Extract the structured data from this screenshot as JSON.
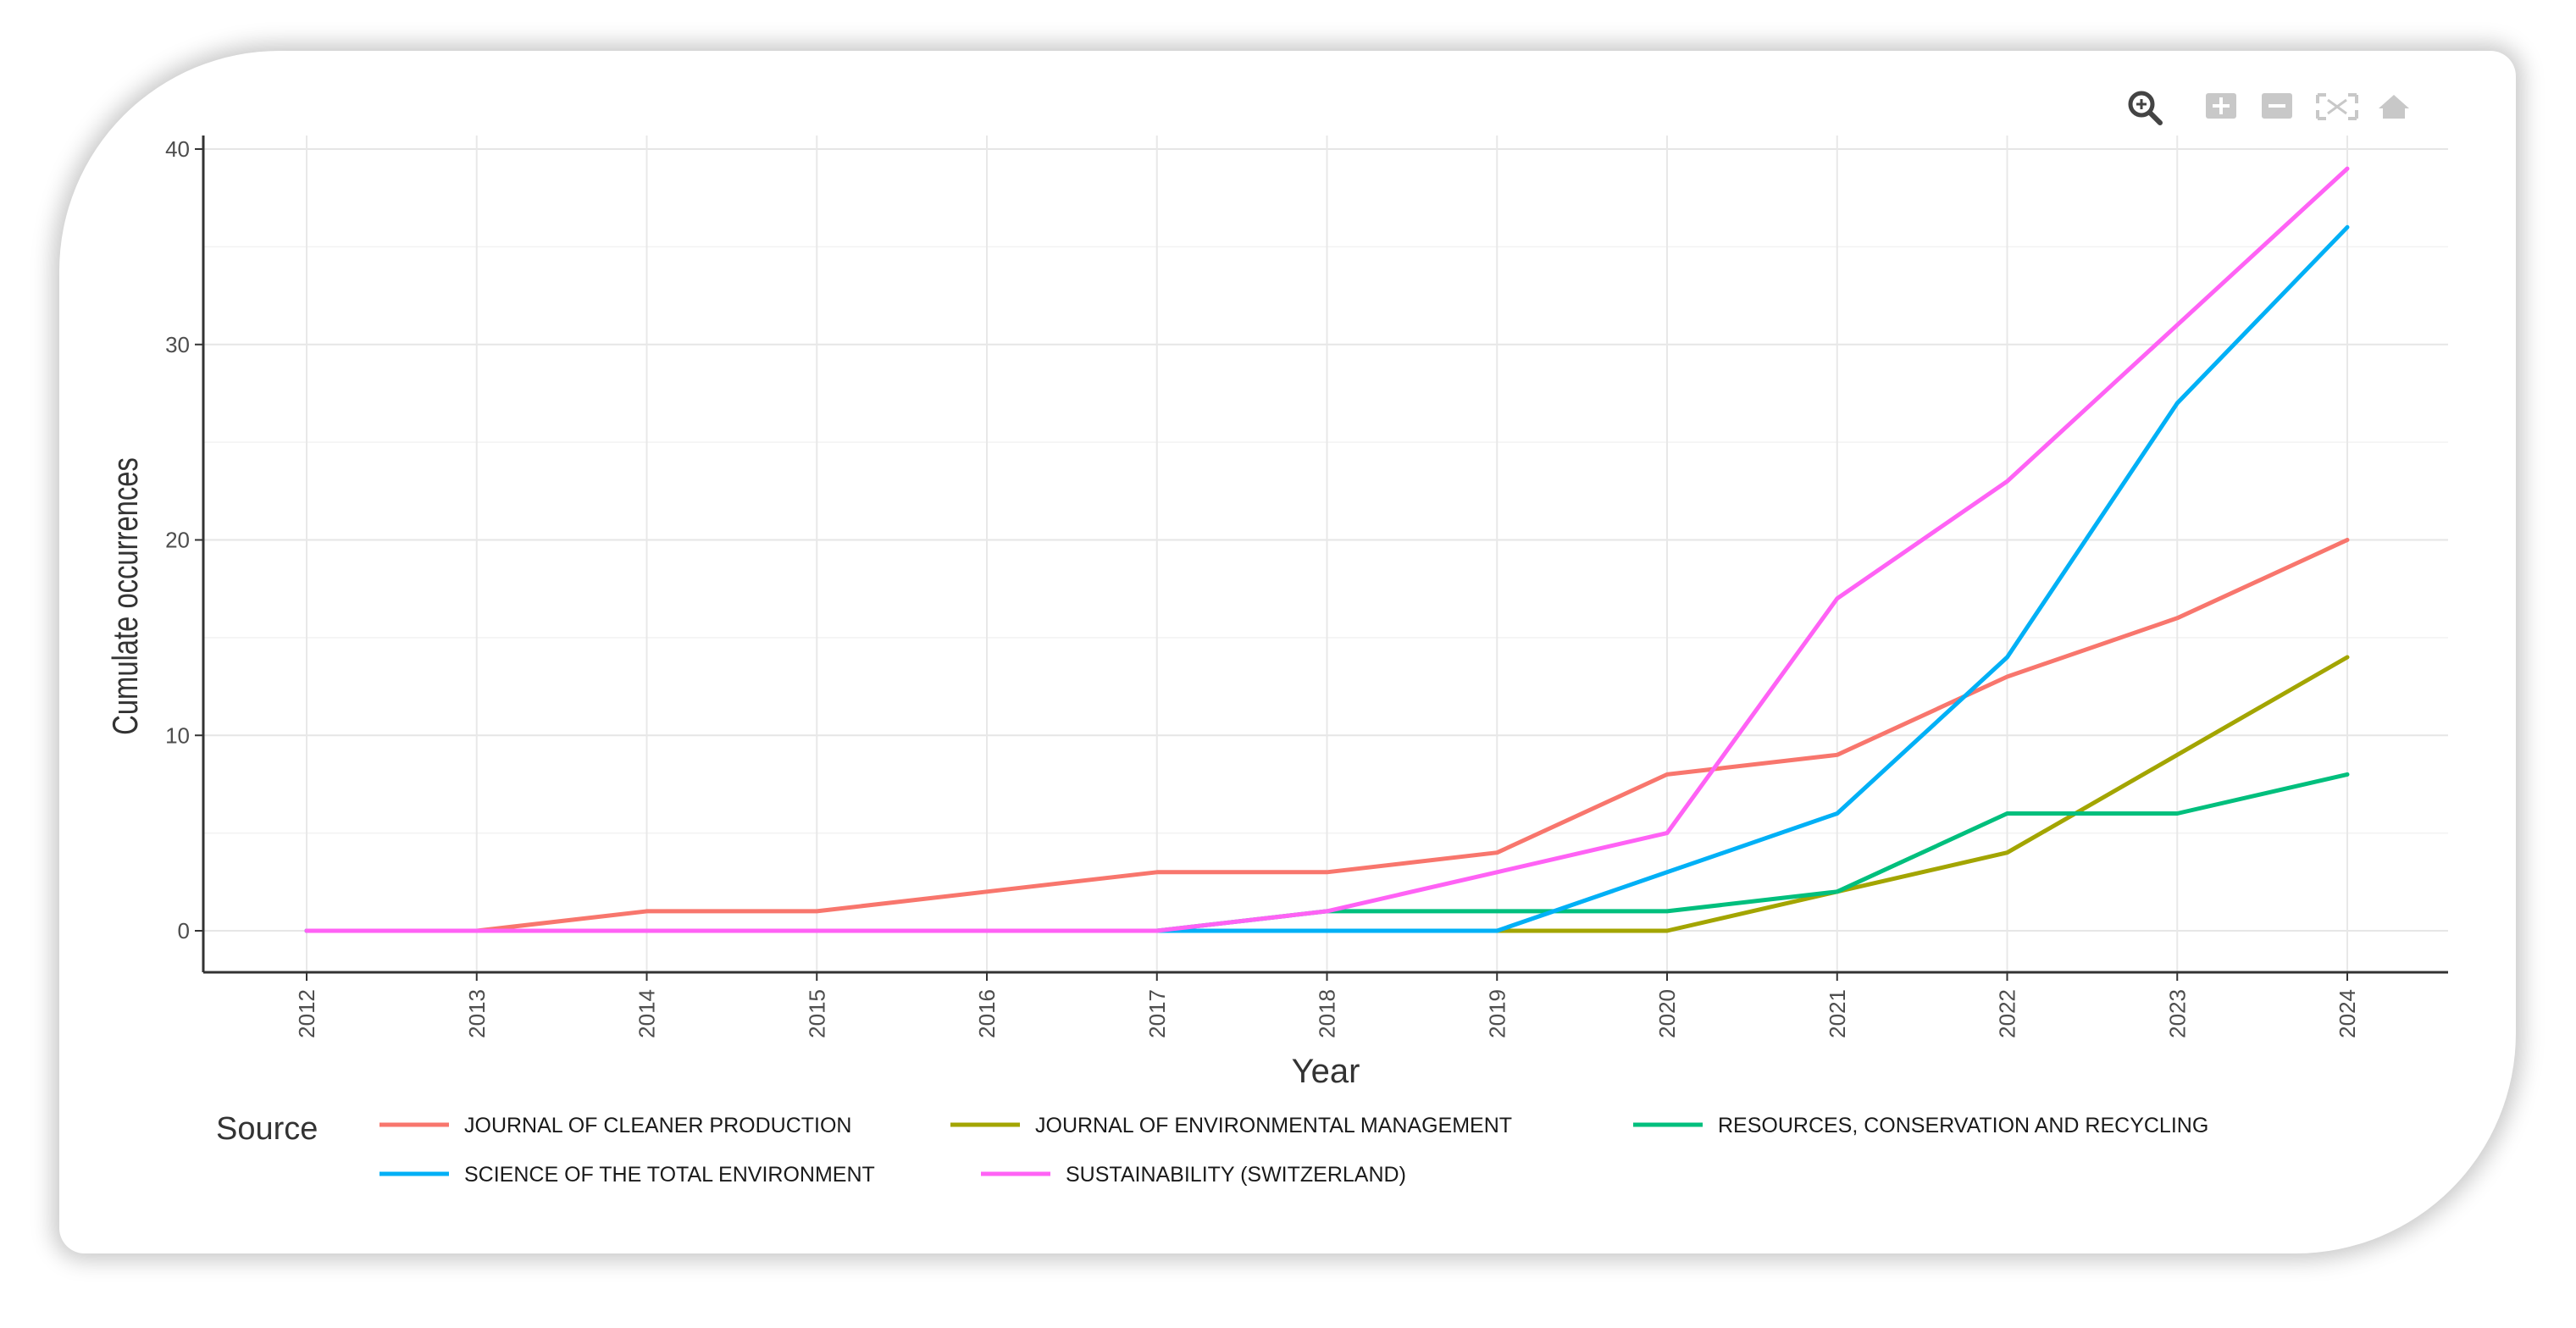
{
  "toolbar": {
    "icons": [
      "zoom-icon",
      "zoom-in-icon",
      "zoom-out-icon",
      "autoscale-icon",
      "reset-home-icon"
    ]
  },
  "chart_data": {
    "type": "line",
    "title": "",
    "xlabel": "Year",
    "ylabel": "Cumulate occurrences",
    "x": [
      "2012",
      "2013",
      "2014",
      "2015",
      "2016",
      "2017",
      "2018",
      "2019",
      "2020",
      "2021",
      "2022",
      "2023",
      "2024"
    ],
    "yticks": [
      "0",
      "10",
      "20",
      "30",
      "40"
    ],
    "ylim": [
      0,
      40
    ],
    "grid": true,
    "legend": {
      "title": "Source",
      "placement": "bottom"
    },
    "series": [
      {
        "name": "JOURNAL OF CLEANER PRODUCTION",
        "color": "#F8766D",
        "values": [
          0,
          0,
          1,
          1,
          2,
          3,
          3,
          4,
          8,
          9,
          13,
          16,
          20
        ]
      },
      {
        "name": "JOURNAL OF ENVIRONMENTAL MANAGEMENT",
        "color": "#A3A500",
        "values": [
          0,
          0,
          0,
          0,
          0,
          0,
          0,
          0,
          0,
          2,
          4,
          9,
          14
        ]
      },
      {
        "name": "RESOURCES, CONSERVATION AND RECYCLING",
        "color": "#00BF7D",
        "values": [
          0,
          0,
          0,
          0,
          0,
          0,
          1,
          1,
          1,
          2,
          6,
          6,
          8
        ]
      },
      {
        "name": "SCIENCE OF THE TOTAL ENVIRONMENT",
        "color": "#00B0F6",
        "values": [
          0,
          0,
          0,
          0,
          0,
          0,
          0,
          0,
          3,
          6,
          14,
          27,
          36
        ]
      },
      {
        "name": "SUSTAINABILITY (SWITZERLAND)",
        "color": "#FF62F5",
        "values": [
          0,
          0,
          0,
          0,
          0,
          0,
          1,
          3,
          5,
          17,
          23,
          31,
          39
        ]
      }
    ]
  }
}
